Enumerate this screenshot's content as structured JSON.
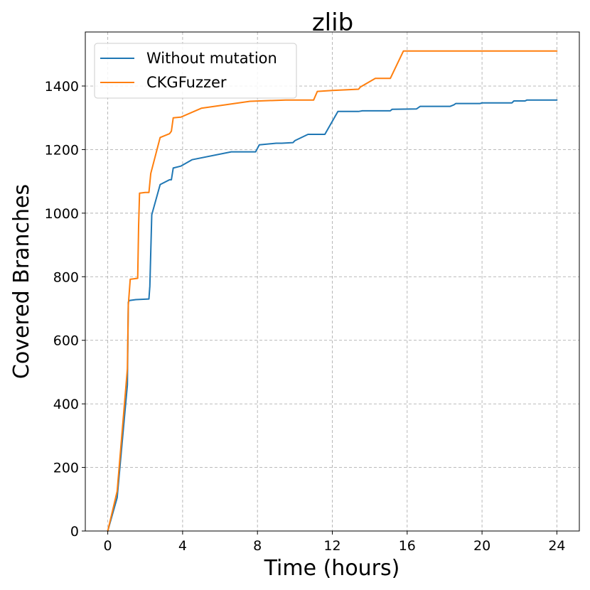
{
  "chart_data": {
    "type": "line",
    "title": "zlib",
    "xlabel": "Time (hours)",
    "ylabel": "Covered Branches",
    "xlim": [
      -1.2,
      25.2
    ],
    "ylim": [
      0,
      1570
    ],
    "xticks": [
      0,
      4,
      8,
      12,
      16,
      20,
      24
    ],
    "yticks": [
      0,
      200,
      400,
      600,
      800,
      1000,
      1200,
      1400
    ],
    "grid": true,
    "legend_position": "top-left",
    "series": [
      {
        "name": "Without mutation",
        "color": "#1f77b4",
        "x": [
          0,
          0.5,
          1.05,
          1.1,
          1.15,
          1.5,
          2.2,
          2.25,
          2.35,
          2.8,
          3.3,
          3.4,
          3.5,
          3.9,
          4.5,
          6.6,
          7.9,
          8.1,
          9.0,
          9.3,
          9.9,
          10.0,
          10.7,
          11.6,
          12.3,
          13.4,
          13.6,
          15.1,
          15.2,
          16.5,
          16.7,
          18.3,
          18.5,
          18.6,
          19.9,
          20.0,
          21.6,
          21.7,
          22.3,
          22.4,
          24.0
        ],
        "y": [
          0,
          105,
          460,
          720,
          725,
          728,
          730,
          770,
          995,
          1090,
          1105,
          1105,
          1142,
          1148,
          1168,
          1193,
          1193,
          1215,
          1220,
          1220,
          1222,
          1228,
          1248,
          1248,
          1320,
          1320,
          1322,
          1322,
          1327,
          1328,
          1336,
          1336,
          1341,
          1345,
          1345,
          1347,
          1347,
          1353,
          1353,
          1356,
          1356
        ]
      },
      {
        "name": "CKGFuzzer",
        "color": "#ff7f0e",
        "x": [
          0,
          0.5,
          1.05,
          1.1,
          1.2,
          1.6,
          1.65,
          1.7,
          2.0,
          2.2,
          2.3,
          2.8,
          3.3,
          3.4,
          3.5,
          3.9,
          5.0,
          7.6,
          9.5,
          11.0,
          11.2,
          12.0,
          13.4,
          13.5,
          14.3,
          15.1,
          15.8,
          24.0
        ],
        "y": [
          0,
          125,
          510,
          710,
          792,
          795,
          960,
          1063,
          1065,
          1065,
          1125,
          1238,
          1250,
          1258,
          1300,
          1302,
          1330,
          1352,
          1356,
          1356,
          1383,
          1386,
          1390,
          1397,
          1424,
          1424,
          1510,
          1510
        ]
      }
    ]
  }
}
